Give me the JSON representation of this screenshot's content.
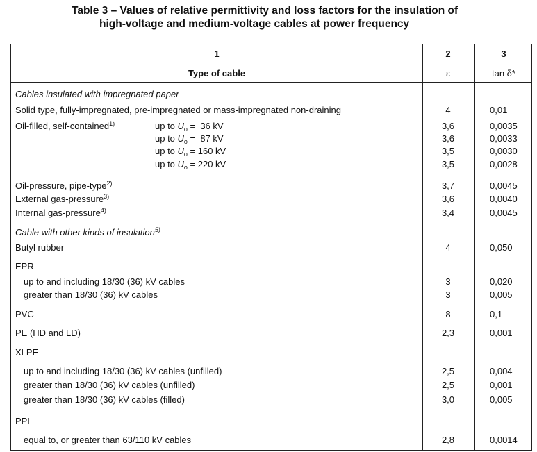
{
  "title": [
    "Table 3 – Values of relative permittivity and loss factors for the insulation of",
    "high-voltage and medium-voltage cables at power frequency"
  ],
  "header": {
    "numbers": [
      "1",
      "2",
      "3"
    ],
    "names": [
      "Type of cable",
      "ε",
      "tan δ*"
    ]
  },
  "rows": [
    {
      "heading": "Cables insulated with impregnated paper"
    },
    {
      "label": "Solid type, fully-impregnated, pre-impregnated or mass-impregnated non-draining",
      "eps": "4",
      "tan": "0,01"
    },
    {
      "label": "Oil-filled, self-contained",
      "sup": "1)",
      "voltage": {
        "prefix": "up to ",
        "symbol": "U",
        "subscript": "o",
        "rest": " =  36 kV"
      },
      "eps": "3,6",
      "tan": "0,0035"
    },
    {
      "voltage": {
        "prefix": "up to ",
        "symbol": "U",
        "subscript": "o",
        "rest": " =  87 kV"
      },
      "eps": "3,6",
      "tan": "0,0033"
    },
    {
      "voltage": {
        "prefix": "up to ",
        "symbol": "U",
        "subscript": "o",
        "rest": " = 160 kV"
      },
      "eps": "3,5",
      "tan": "0,0030"
    },
    {
      "voltage": {
        "prefix": "up to ",
        "symbol": "U",
        "subscript": "o",
        "rest": " = 220 kV"
      },
      "eps": "3,5",
      "tan": "0,0028"
    },
    {
      "label": "Oil-pressure, pipe-type",
      "sup": "2)",
      "eps": "3,7",
      "tan": "0,0045"
    },
    {
      "label": "External gas-pressure",
      "sup": "3)",
      "eps": "3,6",
      "tan": "0,0040"
    },
    {
      "label": "Internal gas-pressure",
      "sup": "4)",
      "eps": "3,4",
      "tan": "0,0045"
    },
    {
      "heading": "Cable with other kinds of insulation",
      "sup": "5)"
    },
    {
      "label": "Butyl rubber",
      "eps": "4",
      "tan": "0,050"
    },
    {
      "label": "EPR"
    },
    {
      "sublabel": "up to and including 18/30 (36) kV cables",
      "eps": "3",
      "tan": "0,020"
    },
    {
      "sublabel": "greater than 18/30 (36) kV cables",
      "eps": "3",
      "tan": "0,005"
    },
    {
      "label": "PVC",
      "eps": "8",
      "tan": "0,1"
    },
    {
      "label": "PE (HD and LD)",
      "eps": "2,3",
      "tan": "0,001"
    },
    {
      "label": "XLPE"
    },
    {
      "sublabel": "up to and including 18/30 (36) kV cables (unfilled)",
      "eps": "2,5",
      "tan": "0,004"
    },
    {
      "sublabel": "greater than 18/30 (36) kV cables (unfilled)",
      "eps": "2,5",
      "tan": "0,001"
    },
    {
      "sublabel": "greater than 18/30 (36) kV cables (filled)",
      "eps": "3,0",
      "tan": "0,005"
    },
    {
      "label": "PPL"
    },
    {
      "sublabel": "equal to, or greater than 63/110 kV cables",
      "eps": "2,8",
      "tan": "0,0014"
    }
  ]
}
